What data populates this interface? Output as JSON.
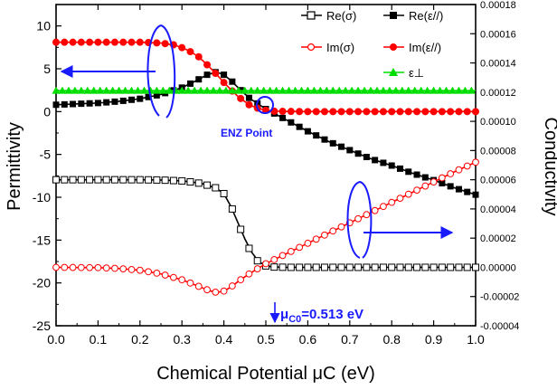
{
  "chart_data": {
    "type": "line",
    "xlabel": "Chemical Potential μC (eV)",
    "ylabel_left": "Permittivity",
    "ylabel_right": "Conductivity",
    "xlim": [
      0.0,
      1.0
    ],
    "ylim_left": [
      -25,
      12.5
    ],
    "ylim_right": [
      -4e-05,
      0.00018
    ],
    "x_ticks": [
      "0.0",
      "0.1",
      "0.2",
      "0.3",
      "0.4",
      "0.5",
      "0.6",
      "0.7",
      "0.8",
      "0.9",
      "1.0"
    ],
    "y_left_ticks": [
      "-25",
      "-20",
      "-15",
      "-10",
      "-5",
      "0",
      "5",
      "10"
    ],
    "y_right_ticks": [
      "-0.00004",
      "-0.00002",
      "0.00000",
      "0.00002",
      "0.00004",
      "0.00006",
      "0.00008",
      "0.00010",
      "0.00012",
      "0.00014",
      "0.00016",
      "0.00018"
    ],
    "legend_position": "top-right",
    "grid": false,
    "annotations": {
      "enz_label": "ENZ Point",
      "mu_c0_label": "=0.513 eV"
    },
    "series": [
      {
        "name": "Re(σ)",
        "axis": "right",
        "color": "#000000",
        "marker": "open-square",
        "x": [
          0.0,
          0.1,
          0.2,
          0.25,
          0.3,
          0.33,
          0.35,
          0.38,
          0.4,
          0.42,
          0.44,
          0.46,
          0.48,
          0.5,
          0.52,
          0.55,
          0.6,
          0.7,
          0.8,
          0.9,
          1.0
        ],
        "values": [
          6e-05,
          6e-05,
          6e-05,
          5.98e-05,
          5.92e-05,
          5.82e-05,
          5.72e-05,
          5.45e-05,
          5.05e-05,
          4e-05,
          2.6e-05,
          1.3e-05,
          4.5e-06,
          1e-06,
          2e-07,
          0.0,
          0.0,
          0.0,
          0.0,
          0.0,
          0.0
        ]
      },
      {
        "name": "Re(ε//)",
        "axis": "left",
        "color": "#000000",
        "marker": "filled-square",
        "x": [
          0.0,
          0.05,
          0.1,
          0.15,
          0.2,
          0.25,
          0.3,
          0.33,
          0.36,
          0.38,
          0.39,
          0.4,
          0.42,
          0.44,
          0.46,
          0.5,
          0.55,
          0.6,
          0.65,
          0.7,
          0.75,
          0.8,
          0.85,
          0.9,
          0.95,
          1.0
        ],
        "values": [
          0.8,
          0.9,
          1.0,
          1.2,
          1.5,
          2.0,
          2.8,
          3.5,
          4.3,
          4.6,
          4.6,
          4.3,
          3.5,
          2.5,
          1.6,
          0.3,
          -1.0,
          -2.3,
          -3.5,
          -4.5,
          -5.5,
          -6.3,
          -7.2,
          -8.0,
          -8.9,
          -9.7
        ]
      },
      {
        "name": "Im(σ)",
        "axis": "right",
        "color": "#ff0000",
        "marker": "open-circle",
        "x": [
          0.0,
          0.1,
          0.15,
          0.2,
          0.25,
          0.3,
          0.34,
          0.37,
          0.39,
          0.41,
          0.43,
          0.46,
          0.5,
          0.55,
          0.6,
          0.65,
          0.7,
          0.75,
          0.8,
          0.85,
          0.9,
          0.95,
          1.0
        ],
        "values": [
          0.0,
          -2e-07,
          -8e-07,
          -2e-06,
          -4.5e-06,
          -8.5e-06,
          -1.3e-05,
          -1.65e-05,
          -1.75e-05,
          -1.5e-05,
          -1.05e-05,
          -4.5e-06,
          2.5e-06,
          9.5e-06,
          1.65e-05,
          2.35e-05,
          3.05e-05,
          3.75e-05,
          4.45e-05,
          5.15e-05,
          5.85e-05,
          6.55e-05,
          7.2e-05
        ]
      },
      {
        "name": "Im(ε//)",
        "axis": "left",
        "color": "#ff0000",
        "marker": "filled-circle",
        "x": [
          0.0,
          0.1,
          0.2,
          0.25,
          0.28,
          0.31,
          0.34,
          0.37,
          0.4,
          0.43,
          0.46,
          0.48,
          0.5,
          0.52,
          0.55,
          0.6,
          0.7,
          0.8,
          0.9,
          1.0
        ],
        "values": [
          8.1,
          8.1,
          8.1,
          8.0,
          7.8,
          7.3,
          6.4,
          5.0,
          3.4,
          1.9,
          0.8,
          0.4,
          0.15,
          0.05,
          0.02,
          0.0,
          0.0,
          0.0,
          0.0,
          0.0
        ]
      },
      {
        "name": "ε⊥",
        "axis": "left",
        "color": "#00dd00",
        "marker": "filled-triangle",
        "x": [
          0.0,
          1.0
        ],
        "values": [
          2.45,
          2.45
        ]
      }
    ]
  }
}
